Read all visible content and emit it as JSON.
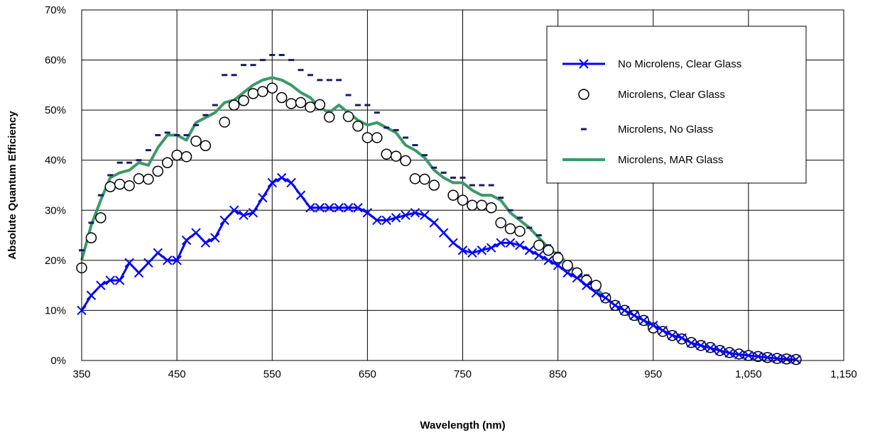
{
  "chart_data": {
    "type": "line",
    "title": "",
    "xlabel": "Wavelength (nm)",
    "ylabel": "Absolute Quantum Efficiency",
    "xlim": [
      350,
      1150
    ],
    "ylim": [
      0,
      70
    ],
    "x_ticks": [
      "350",
      "450",
      "550",
      "650",
      "750",
      "850",
      "950",
      "1,050",
      "1,150"
    ],
    "x_tick_values": [
      350,
      450,
      550,
      650,
      750,
      850,
      950,
      1050,
      1150
    ],
    "y_ticks": [
      "0%",
      "10%",
      "20%",
      "30%",
      "40%",
      "50%",
      "60%",
      "70%"
    ],
    "y_tick_values": [
      0,
      10,
      20,
      30,
      40,
      50,
      60,
      70
    ],
    "grid": true,
    "legend_position": "top-right",
    "x": [
      350,
      360,
      370,
      380,
      390,
      400,
      410,
      420,
      430,
      440,
      450,
      460,
      470,
      480,
      490,
      500,
      510,
      520,
      530,
      540,
      550,
      560,
      570,
      580,
      590,
      600,
      610,
      620,
      630,
      640,
      650,
      660,
      670,
      680,
      690,
      700,
      710,
      720,
      730,
      740,
      750,
      760,
      770,
      780,
      790,
      800,
      810,
      820,
      830,
      840,
      850,
      860,
      870,
      880,
      890,
      900,
      910,
      920,
      930,
      940,
      950,
      960,
      970,
      980,
      990,
      1000,
      1010,
      1020,
      1030,
      1040,
      1050,
      1060,
      1070,
      1080,
      1090,
      1100
    ],
    "series": [
      {
        "name": "No Microlens, Clear Glass",
        "color": "#0000ff",
        "marker": "x",
        "values": [
          10,
          13,
          15,
          16,
          16,
          19.5,
          17.5,
          19.5,
          21.5,
          20,
          20,
          24,
          25.5,
          23.5,
          24.5,
          28,
          30,
          29,
          29.5,
          32.5,
          35.5,
          36.5,
          35.5,
          33,
          30.5,
          30.5,
          30.5,
          30.5,
          30.5,
          30.5,
          29.5,
          28,
          28,
          28.5,
          29,
          29.5,
          29,
          27.5,
          25.5,
          23.5,
          22,
          21.5,
          22,
          22.5,
          23.5,
          23.5,
          23,
          22,
          21,
          20,
          19,
          17.5,
          16.5,
          15,
          13.5,
          12.5,
          11,
          10,
          9,
          8,
          7,
          6,
          5,
          4.5,
          3.5,
          3,
          2.5,
          2,
          1.5,
          1.2,
          1,
          0.8,
          0.6,
          0.4,
          0.3,
          0.2
        ]
      },
      {
        "name": "Microlens, Clear Glass",
        "color": "#000000",
        "marker": "circle",
        "values": [
          18.5,
          24.5,
          28.5,
          34.7,
          35.2,
          34.9,
          36.3,
          36.2,
          37.8,
          39.5,
          41,
          40.7,
          43.8,
          42.9,
          null,
          47.6,
          51,
          51.9,
          53.3,
          53.7,
          54.4,
          52.5,
          51.3,
          51.5,
          50.6,
          51.1,
          48.6,
          null,
          48.7,
          46.8,
          44.5,
          44.5,
          41.2,
          40.8,
          39.9,
          36.3,
          36.2,
          35,
          null,
          33,
          32,
          31,
          31,
          30.5,
          27.5,
          26.3,
          25.8,
          null,
          23,
          22,
          20.5,
          19,
          17.5,
          16,
          15,
          12.5,
          11,
          10,
          9,
          8,
          6.5,
          5.8,
          5,
          4.3,
          3.6,
          3,
          2.6,
          2,
          1.6,
          1.3,
          1,
          0.8,
          0.6,
          0.4,
          0.3,
          0.2
        ]
      },
      {
        "name": "Microlens, No Glass",
        "color": "#1a1a6e",
        "marker": "dash",
        "values": [
          22,
          27.5,
          33,
          37,
          39.5,
          39.5,
          40,
          42,
          45,
          45.5,
          45,
          45,
          47,
          49,
          51,
          57,
          57,
          59,
          59,
          60,
          61,
          61,
          60,
          58,
          57,
          56,
          56,
          56,
          53,
          51,
          51,
          49.5,
          46.5,
          46,
          44.5,
          43,
          41,
          38.5,
          37.5,
          36.5,
          36.5,
          35,
          35,
          35,
          32.5,
          30,
          28.5,
          26.5,
          25,
          23,
          21.5,
          19.5,
          18,
          17,
          15.5,
          13,
          11.5,
          10,
          9,
          8,
          7,
          6,
          5.5,
          4.5,
          3.5,
          3.5,
          3,
          2.5,
          2,
          1.5,
          1.2,
          1,
          0.8,
          0.6,
          0.4,
          0.3
        ]
      },
      {
        "name": "Microlens, MAR Glass",
        "color": "#3a9a65",
        "marker": "none",
        "values": [
          20,
          27,
          32,
          36.5,
          37.5,
          38,
          39.5,
          39,
          42.5,
          45,
          45,
          44,
          47.5,
          48.5,
          49.5,
          51.5,
          52,
          53.5,
          55,
          56,
          56.5,
          56,
          55,
          53.5,
          52.5,
          50.5,
          49.5,
          51,
          49.5,
          48,
          47,
          47.5,
          46.5,
          45.5,
          43,
          42,
          40.5,
          38,
          36.5,
          35.5,
          35.5,
          34,
          33,
          33,
          32,
          29.5,
          28,
          26.5,
          24.5,
          22.5,
          21,
          19.5,
          17.5,
          16,
          14.5,
          12.5,
          11,
          9.5,
          8.5,
          7.5,
          6.5,
          5.5,
          5,
          4,
          3.5,
          3,
          2.5,
          2,
          1.6,
          1.3,
          1,
          0.8,
          0.6,
          0.4,
          0.3,
          0.2
        ]
      }
    ]
  }
}
